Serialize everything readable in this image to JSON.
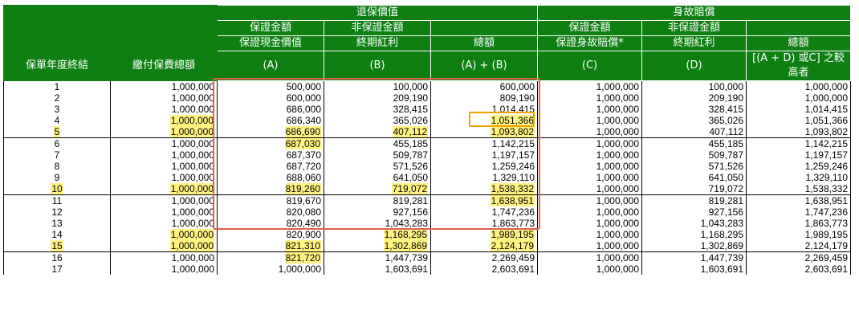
{
  "header": {
    "surrender_group": "退保價值",
    "death_group": "身故賠償",
    "guaranteed": "保證金額",
    "non_guaranteed": "非保證金額",
    "col_year": "保單年度終結",
    "col_premium": "繳付保費總額",
    "col_cash_value": "保證現金價值",
    "col_cash_value_sub": "(A)",
    "col_terminal_bonus": "終期紅利",
    "col_terminal_bonus_sub": "(B)",
    "col_total": "總額",
    "col_total_sub": "(A) + (B)",
    "col_death_benefit": "保證身故賠償*",
    "col_death_benefit_sub": "(C)",
    "col_death_bonus": "終期紅利",
    "col_death_bonus_sub": "(D)",
    "col_death_total": "總額",
    "col_death_total_sub1": "[(A + D) 或C] 之較",
    "col_death_total_sub2": "高者"
  },
  "highlight_color": "#fff481",
  "header_color": "#0f7f14",
  "rows": [
    [
      "1",
      "1,000,000",
      "500,000",
      "100,000",
      "600,000",
      "1,000,000",
      "100,000",
      "1,000,000"
    ],
    [
      "2",
      "1,000,000",
      "600,000",
      "209,190",
      "809,190",
      "1,000,000",
      "209,190",
      "1,000,000"
    ],
    [
      "3",
      "1,000,000",
      "686,000",
      "328,415",
      "1,014,415",
      "1,000,000",
      "328,415",
      "1,014,415"
    ],
    [
      "4",
      "1,000,000",
      "686,340",
      "365,026",
      "1,051,366",
      "1,000,000",
      "365,026",
      "1,051,366"
    ],
    [
      "5",
      "1,000,000",
      "686,690",
      "407,112",
      "1,093,802",
      "1,000,000",
      "407,112",
      "1,093,802"
    ],
    [
      "6",
      "1,000,000",
      "687,030",
      "455,185",
      "1,142,215",
      "1,000,000",
      "455,185",
      "1,142,215"
    ],
    [
      "7",
      "1,000,000",
      "687,370",
      "509,787",
      "1,197,157",
      "1,000,000",
      "509,787",
      "1,197,157"
    ],
    [
      "8",
      "1,000,000",
      "687,720",
      "571,526",
      "1,259,246",
      "1,000,000",
      "571,526",
      "1,259,246"
    ],
    [
      "9",
      "1,000,000",
      "688,060",
      "641,050",
      "1,329,110",
      "1,000,000",
      "641,050",
      "1,329,110"
    ],
    [
      "10",
      "1,000,000",
      "819,260",
      "719,072",
      "1,538,332",
      "1,000,000",
      "719,072",
      "1,538,332"
    ],
    [
      "11",
      "1,000,000",
      "819,670",
      "819,281",
      "1,638,951",
      "1,000,000",
      "819,281",
      "1,638,951"
    ],
    [
      "12",
      "1,000,000",
      "820,080",
      "927,156",
      "1,747,236",
      "1,000,000",
      "927,156",
      "1,747,236"
    ],
    [
      "13",
      "1,000,000",
      "820,490",
      "1,043,283",
      "1,863,773",
      "1,000,000",
      "1,043,283",
      "1,863,773"
    ],
    [
      "14",
      "1,000,000",
      "820,900",
      "1,168,295",
      "1,989,195",
      "1,000,000",
      "1,168,295",
      "1,989,195"
    ],
    [
      "15",
      "1,000,000",
      "821,310",
      "1,302,869",
      "2,124,179",
      "1,000,000",
      "1,302,869",
      "2,124,179"
    ],
    [
      "16",
      "1,000,000",
      "821,720",
      "1,447,739",
      "2,269,459",
      "1,000,000",
      "1,447,739",
      "2,269,459"
    ],
    [
      "17",
      "1,000,000",
      "1,000,000",
      "1,603,691",
      "2,603,691",
      "1,000,000",
      "1,603,691",
      "2,603,691"
    ]
  ],
  "highlights": [
    [
      3,
      4
    ],
    [
      4,
      1
    ],
    [
      4,
      3
    ],
    [
      4,
      4
    ],
    [
      4,
      0
    ],
    [
      4,
      2
    ],
    [
      5,
      2
    ],
    [
      9,
      0
    ],
    [
      9,
      1
    ],
    [
      9,
      2
    ],
    [
      9,
      3
    ],
    [
      9,
      4
    ],
    [
      10,
      4
    ],
    [
      13,
      1
    ],
    [
      13,
      3
    ],
    [
      13,
      4
    ],
    [
      14,
      0
    ],
    [
      14,
      1
    ],
    [
      14,
      2
    ],
    [
      14,
      3
    ],
    [
      14,
      4
    ],
    [
      15,
      2
    ]
  ],
  "group_ends": [
    4,
    9,
    14
  ]
}
